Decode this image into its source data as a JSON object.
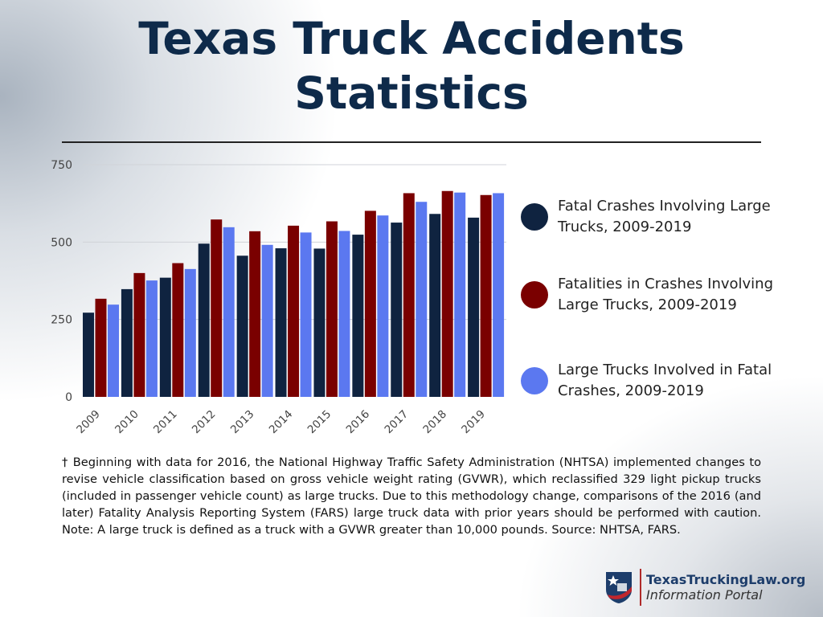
{
  "header": {
    "title_line1": "Texas Truck Accidents",
    "title_line2": "Statistics"
  },
  "chart_data": {
    "type": "bar",
    "categories": [
      "2009",
      "2010",
      "2011",
      "2012",
      "2013",
      "2014",
      "2015",
      "2016",
      "2017",
      "2018",
      "2019"
    ],
    "series": [
      {
        "name": "Fatal Crashes Involving Large Trucks, 2009-2019",
        "color": "#0f2340",
        "values": [
          272,
          348,
          385,
          495,
          456,
          480,
          479,
          524,
          563,
          591,
          579
        ]
      },
      {
        "name": "Fatalities in Crashes Involving Large Trucks, 2009-2019",
        "color": "#7a0000",
        "values": [
          317,
          400,
          432,
          573,
          535,
          553,
          567,
          601,
          658,
          665,
          652
        ]
      },
      {
        "name": "Large Trucks Involved in Fatal Crashes, 2009-2019",
        "color": "#5b78f0",
        "values": [
          298,
          376,
          413,
          548,
          491,
          531,
          536,
          586,
          630,
          660,
          658
        ]
      }
    ],
    "yticks": [
      "0",
      "250",
      "500",
      "750"
    ],
    "ylim": [
      0,
      750
    ],
    "grid": true,
    "legend": "right"
  },
  "footnote": "† Beginning with data for 2016, the National Highway Traffic Safety Administration (NHTSA) implemented changes to revise vehicle classification based on gross vehicle weight rating (GVWR), which reclassified 329 light pickup trucks (included in passenger vehicle count) as large trucks. Due to this methodology change, comparisons of the 2016 (and later) Fatality Analysis Reporting System (FARS) large truck data with prior years should be performed with caution. Note: A large truck is defined as a truck with a GVWR greater than 10,000 pounds. Source: NHTSA, FARS.",
  "logo": {
    "name": "TexasTruckingLaw.org",
    "subtitle": "Information Portal"
  }
}
